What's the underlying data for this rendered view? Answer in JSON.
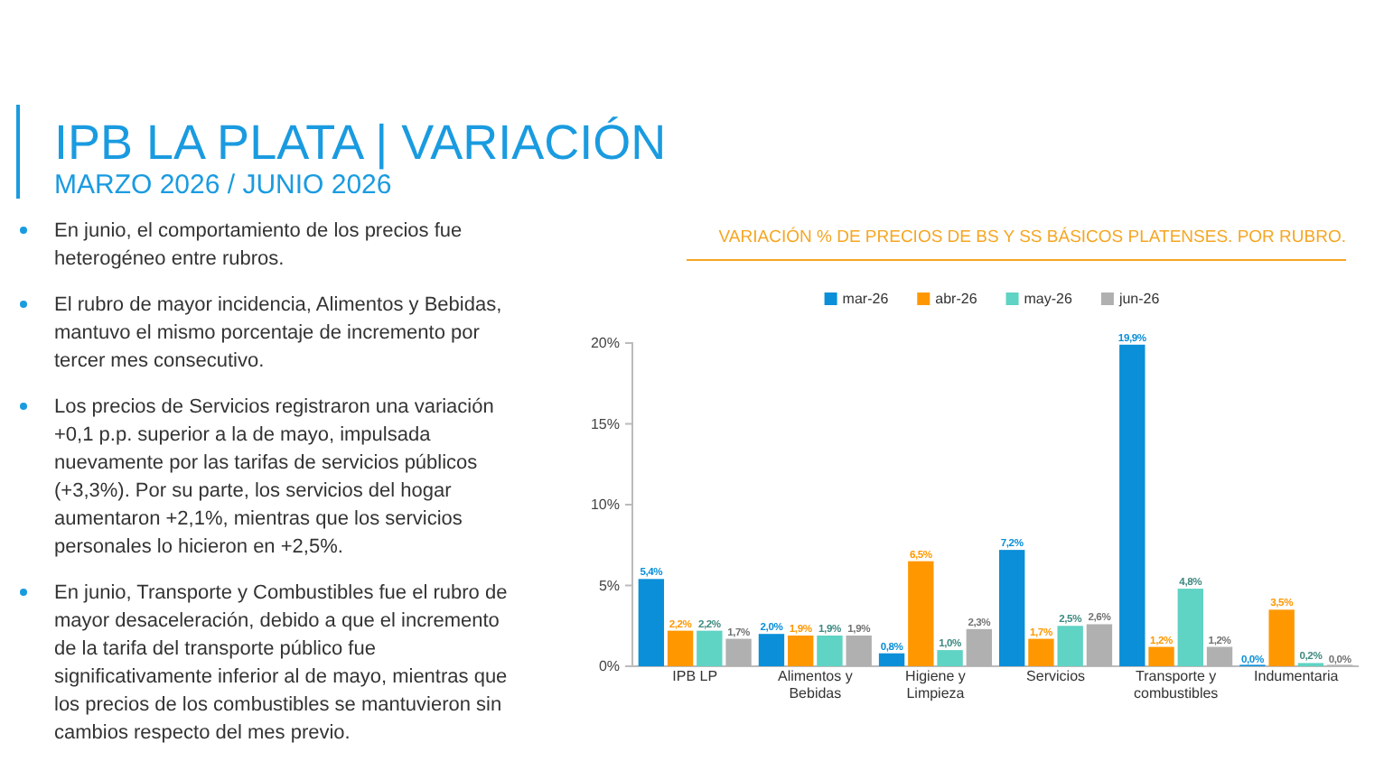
{
  "chart_data": {
    "type": "bar",
    "title": "IPB LA PLATA | VARIACIÓN",
    "subtitle": "MARZO 2026 / JUNIO 2026",
    "annotations": [
      "VARIACIÓN % DE PRECIOS DE BS Y SS BÁSICOS PLATENSES. POR RUBRO.",
      "En junio, el comportamiento de los precios fue heterogéneo entre rubros.",
      "El rubro de mayor incidencia, Alimentos y Bebidas, mantuvo el mismo porcentaje de incremento por tercer mes consecutivo.",
      "Los precios de Servicios registraron una variación +0,1 p.p. superior a la de mayo, impulsada nuevamente por las tarifas de servicios públicos (+3,3%). Por su parte, los servicios del hogar aumentaron +2,1%, mientras que los servicios personales lo hicieron en +2,5%.",
      "En junio, Transporte y Combustibles fue el rubro de mayor desaceleración, debido a que el incremento de la tarifa del transporte público fue significativamente inferior al de mayo, mientras que los precios de los combustibles se mantuvieron sin cambios respecto del mes previo."
    ],
    "categories": [
      "IPB LP",
      "Alimentos y Bebidas",
      "Higiene y Limpieza",
      "Servicios",
      "Transporte y combustibles",
      "Indumentaria"
    ],
    "series": [
      {
        "name": "mar-26",
        "color": "#0a8fd8",
        "values": [
          5.4,
          2.0,
          0.8,
          7.2,
          19.9,
          0.0
        ],
        "value_labels": [
          "5,4%",
          "2,0%",
          "0,8%",
          "7,2%",
          "19,9%",
          "0,0%"
        ]
      },
      {
        "name": "abr-26",
        "color": "#ff9800",
        "values": [
          2.2,
          1.9,
          6.5,
          1.7,
          1.2,
          3.5
        ],
        "value_labels": [
          "2,2%",
          "1,9%",
          "6,5%",
          "1,7%",
          "1,2%",
          "3,5%"
        ]
      },
      {
        "name": "may-26",
        "color": "#5fd3c4",
        "values": [
          2.2,
          1.9,
          1.0,
          2.5,
          4.8,
          0.2
        ],
        "value_labels": [
          "2,2%",
          "1,9%",
          "1,0%",
          "2,5%",
          "4,8%",
          "0,2%"
        ]
      },
      {
        "name": "jun-26",
        "color": "#b0b0b0",
        "values": [
          1.7,
          1.9,
          2.3,
          2.6,
          1.2,
          0.0
        ],
        "value_labels": [
          "1,7%",
          "1,9%",
          "2,3%",
          "2,6%",
          "1,2%",
          "0,0%"
        ]
      }
    ],
    "ylim": [
      0,
      20
    ],
    "yticks": [
      {
        "value": 0,
        "label": "0%"
      },
      {
        "value": 5,
        "label": "5%"
      },
      {
        "value": 10,
        "label": "10%"
      },
      {
        "value": 15,
        "label": "15%"
      },
      {
        "value": 20,
        "label": "20%"
      }
    ],
    "legend": "top"
  }
}
